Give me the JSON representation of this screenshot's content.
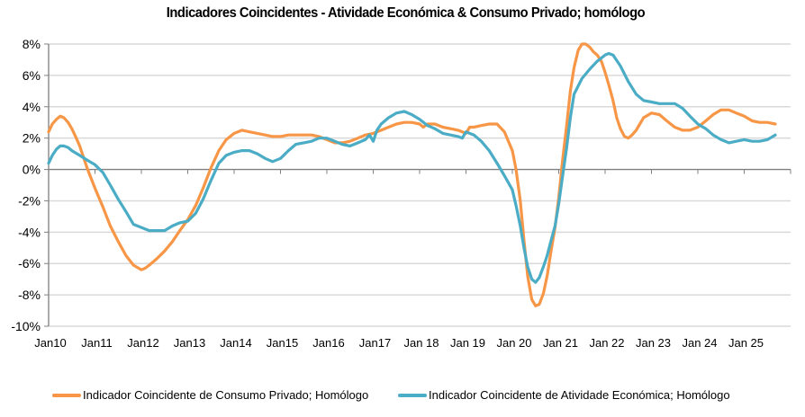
{
  "chart_data": {
    "type": "line",
    "title": "Indicadores Coincidentes - Atividade Económica & Consumo Privado; homólogo",
    "xlabel": "",
    "ylabel": "",
    "ylim": [
      -10,
      8
    ],
    "ytick_step": 2,
    "ytick_labels": [
      "8%",
      "6%",
      "4%",
      "2%",
      "0%",
      "-2%",
      "-4%",
      "-6%",
      "-8%",
      "-10%"
    ],
    "ytick_values": [
      8,
      6,
      4,
      2,
      0,
      -2,
      -4,
      -6,
      -8,
      -10
    ],
    "xlim": [
      2010.0,
      2026.0
    ],
    "xtick_labels": [
      "Jan10",
      "Jan11",
      "Jan12",
      "Jan13",
      "Jan14",
      "Jan15",
      "Jan16",
      "Jan17",
      "Jan 18",
      "Jan 19",
      "Jan 20",
      "Jan 21",
      "Jan 22",
      "Jan 23",
      "Jan 24",
      "Jan 25"
    ],
    "xtick_values": [
      2010,
      2011,
      2012,
      2013,
      2014,
      2015,
      2016,
      2017,
      2018,
      2019,
      2020,
      2021,
      2022,
      2023,
      2024,
      2025
    ],
    "grid": true,
    "legend_position": "bottom",
    "series": [
      {
        "name": "Indicador Coincidente de Consumo Privado; Homólogo",
        "color": "#F79646",
        "x": [
          2010.0,
          2010.08,
          2010.17,
          2010.25,
          2010.33,
          2010.42,
          2010.5,
          2010.58,
          2010.67,
          2010.75,
          2010.83,
          2010.92,
          2011.0,
          2011.17,
          2011.33,
          2011.5,
          2011.67,
          2011.83,
          2012.0,
          2012.08,
          2012.17,
          2012.33,
          2012.5,
          2012.67,
          2012.83,
          2013.0,
          2013.17,
          2013.33,
          2013.5,
          2013.67,
          2013.83,
          2014.0,
          2014.17,
          2014.33,
          2014.5,
          2014.67,
          2014.83,
          2015.0,
          2015.17,
          2015.33,
          2015.5,
          2015.67,
          2015.83,
          2016.0,
          2016.17,
          2016.33,
          2016.5,
          2016.67,
          2016.83,
          2017.0,
          2017.17,
          2017.33,
          2017.5,
          2017.67,
          2017.83,
          2018.0,
          2018.08,
          2018.17,
          2018.33,
          2018.5,
          2018.67,
          2018.83,
          2019.0,
          2019.08,
          2019.17,
          2019.33,
          2019.5,
          2019.67,
          2019.83,
          2020.0,
          2020.08,
          2020.17,
          2020.25,
          2020.33,
          2020.42,
          2020.5,
          2020.58,
          2020.67,
          2020.75,
          2020.83,
          2020.92,
          2021.0,
          2021.08,
          2021.17,
          2021.25,
          2021.33,
          2021.42,
          2021.5,
          2021.58,
          2021.67,
          2021.75,
          2021.83,
          2021.92,
          2022.0,
          2022.08,
          2022.17,
          2022.25,
          2022.33,
          2022.42,
          2022.5,
          2022.58,
          2022.67,
          2022.75,
          2022.83,
          2023.0,
          2023.17,
          2023.33,
          2023.5,
          2023.67,
          2023.83,
          2024.0,
          2024.17,
          2024.33,
          2024.5,
          2024.67,
          2024.83,
          2025.0,
          2025.17,
          2025.33,
          2025.5,
          2025.67
        ],
        "y": [
          2.4,
          2.9,
          3.2,
          3.4,
          3.3,
          3.0,
          2.6,
          2.1,
          1.5,
          0.8,
          0.1,
          -0.6,
          -1.2,
          -2.4,
          -3.6,
          -4.6,
          -5.5,
          -6.1,
          -6.4,
          -6.3,
          -6.1,
          -5.7,
          -5.2,
          -4.6,
          -3.9,
          -3.2,
          -2.3,
          -1.2,
          0.1,
          1.2,
          1.9,
          2.3,
          2.5,
          2.4,
          2.3,
          2.2,
          2.1,
          2.1,
          2.2,
          2.2,
          2.2,
          2.2,
          2.1,
          1.9,
          1.7,
          1.7,
          1.8,
          2.0,
          2.2,
          2.3,
          2.5,
          2.7,
          2.9,
          3.0,
          3.0,
          2.9,
          2.7,
          2.9,
          2.9,
          2.7,
          2.6,
          2.5,
          2.3,
          2.7,
          2.7,
          2.8,
          2.9,
          2.9,
          2.4,
          1.2,
          0.0,
          -2.0,
          -4.5,
          -6.8,
          -8.3,
          -8.7,
          -8.6,
          -7.9,
          -6.8,
          -5.3,
          -3.7,
          -1.8,
          0.5,
          2.8,
          5.0,
          6.5,
          7.6,
          8.0,
          8.0,
          7.8,
          7.5,
          7.3,
          6.9,
          6.2,
          5.4,
          4.4,
          3.3,
          2.6,
          2.1,
          2.0,
          2.2,
          2.5,
          2.9,
          3.3,
          3.6,
          3.5,
          3.1,
          2.7,
          2.5,
          2.5,
          2.7,
          3.1,
          3.5,
          3.8,
          3.8,
          3.6,
          3.4,
          3.1,
          3.0,
          3.0,
          2.9
        ],
        "values_note": "monthly y/y %, read from chart"
      },
      {
        "name": "Indicador Coincidente de Atividade Económica; Homólogo",
        "color": "#4BACC6",
        "x": [
          2010.0,
          2010.08,
          2010.17,
          2010.25,
          2010.33,
          2010.42,
          2010.5,
          2010.67,
          2010.83,
          2011.0,
          2011.17,
          2011.33,
          2011.5,
          2011.67,
          2011.83,
          2012.0,
          2012.17,
          2012.33,
          2012.5,
          2012.67,
          2012.83,
          2013.0,
          2013.17,
          2013.33,
          2013.5,
          2013.67,
          2013.83,
          2014.0,
          2014.17,
          2014.33,
          2014.5,
          2014.67,
          2014.83,
          2015.0,
          2015.17,
          2015.33,
          2015.5,
          2015.67,
          2015.83,
          2016.0,
          2016.17,
          2016.33,
          2016.5,
          2016.67,
          2016.83,
          2016.92,
          2017.0,
          2017.08,
          2017.17,
          2017.33,
          2017.5,
          2017.67,
          2017.83,
          2018.0,
          2018.17,
          2018.33,
          2018.5,
          2018.67,
          2018.83,
          2018.92,
          2019.0,
          2019.08,
          2019.17,
          2019.33,
          2019.5,
          2019.67,
          2019.83,
          2020.0,
          2020.08,
          2020.17,
          2020.25,
          2020.33,
          2020.42,
          2020.5,
          2020.58,
          2020.67,
          2020.75,
          2020.83,
          2020.92,
          2021.0,
          2021.08,
          2021.17,
          2021.25,
          2021.33,
          2021.5,
          2021.67,
          2021.83,
          2022.0,
          2022.08,
          2022.17,
          2022.33,
          2022.5,
          2022.67,
          2022.83,
          2023.0,
          2023.17,
          2023.33,
          2023.5,
          2023.67,
          2023.83,
          2024.0,
          2024.17,
          2024.33,
          2024.5,
          2024.67,
          2024.83,
          2025.0,
          2025.17,
          2025.33,
          2025.5,
          2025.67
        ],
        "y": [
          0.4,
          0.9,
          1.3,
          1.5,
          1.5,
          1.4,
          1.2,
          0.9,
          0.6,
          0.3,
          -0.2,
          -1.0,
          -1.9,
          -2.7,
          -3.5,
          -3.7,
          -3.9,
          -3.9,
          -3.9,
          -3.6,
          -3.4,
          -3.3,
          -2.8,
          -1.9,
          -0.7,
          0.4,
          0.9,
          1.1,
          1.2,
          1.2,
          1.0,
          0.7,
          0.5,
          0.7,
          1.2,
          1.6,
          1.7,
          1.8,
          2.0,
          2.0,
          1.8,
          1.6,
          1.5,
          1.7,
          1.9,
          2.2,
          1.8,
          2.5,
          2.9,
          3.3,
          3.6,
          3.7,
          3.5,
          3.2,
          2.8,
          2.6,
          2.3,
          2.2,
          2.1,
          2.0,
          2.4,
          2.3,
          2.2,
          1.8,
          1.2,
          0.4,
          -0.4,
          -1.3,
          -2.3,
          -3.6,
          -5.0,
          -6.2,
          -7.0,
          -7.2,
          -6.9,
          -6.2,
          -5.5,
          -4.6,
          -3.6,
          -2.2,
          -0.5,
          1.4,
          3.3,
          4.8,
          5.8,
          6.4,
          6.9,
          7.3,
          7.4,
          7.3,
          6.6,
          5.6,
          4.8,
          4.4,
          4.3,
          4.2,
          4.2,
          4.2,
          3.9,
          3.4,
          2.9,
          2.6,
          2.2,
          1.9,
          1.7,
          1.8,
          1.9,
          1.8,
          1.8,
          1.9,
          2.2
        ]
      }
    ]
  }
}
